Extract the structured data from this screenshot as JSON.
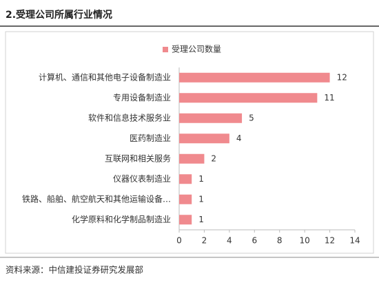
{
  "heading": "2.受理公司所属行业情况",
  "source": "资料来源：中信建投证券研究发展部",
  "chart_data": {
    "type": "hbar",
    "categories": [
      "计算机、通信和其他电子设备制造业",
      "专用设备制造业",
      "软件和信息技术服务业",
      "医药制造业",
      "互联网和相关服务",
      "仪器仪表制造业",
      "铁路、船舶、航空航天和其他运输设备…",
      "化学原料和化学制品制造业"
    ],
    "series": [
      {
        "name": "受理公司数量",
        "color": "#f08a8e",
        "values": [
          12,
          11,
          5,
          4,
          2,
          1,
          1,
          1
        ]
      }
    ],
    "xlim": [
      0,
      14
    ],
    "xticks": [
      0,
      2,
      4,
      6,
      8,
      10,
      12,
      14
    ],
    "grid": false
  }
}
